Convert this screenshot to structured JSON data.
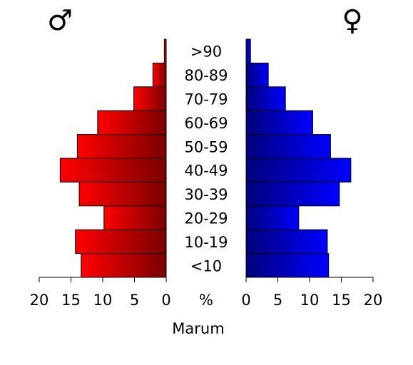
{
  "chart_data": {
    "type": "bar",
    "orientation": "population-pyramid",
    "title": "",
    "xlabel": "Marum",
    "center_unit_label": "%",
    "categories": [
      "<10",
      "10-19",
      "20-29",
      "30-39",
      "40-49",
      "50-59",
      "60-69",
      "70-79",
      "80-89",
      ">90"
    ],
    "xlim": [
      0,
      20
    ],
    "ticks": [
      "20",
      "15",
      "10",
      "5",
      "0",
      "0",
      "5",
      "10",
      "15",
      "20"
    ],
    "series": [
      {
        "symbol": "♂",
        "side": "left",
        "color_light": "#ff0000",
        "color_dark": "#7a0000",
        "values": [
          13.4,
          14.3,
          9.8,
          13.7,
          16.7,
          14.0,
          10.8,
          5.1,
          2.1,
          0.3
        ]
      },
      {
        "symbol": "♀",
        "side": "right",
        "color_light": "#0000ff",
        "color_dark": "#00007a",
        "values": [
          13.0,
          12.8,
          8.3,
          14.7,
          16.5,
          13.3,
          10.5,
          6.2,
          3.5,
          0.7
        ]
      }
    ],
    "grid": false,
    "legend": "none"
  }
}
